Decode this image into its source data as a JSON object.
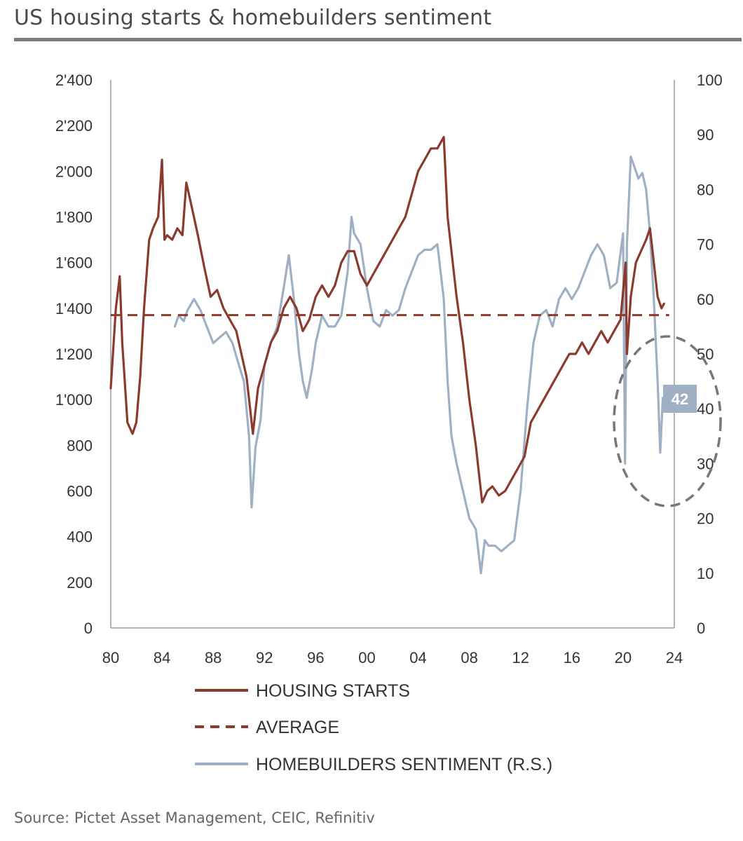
{
  "title": "US housing starts & homebuilders sentiment",
  "source": "Source: Pictet Asset Management, CEIC, Refinitiv",
  "chart_data": {
    "type": "line",
    "title": "US housing starts & homebuilders sentiment",
    "x_ticks": [
      "80",
      "84",
      "88",
      "92",
      "96",
      "00",
      "04",
      "08",
      "12",
      "16",
      "20",
      "24"
    ],
    "x_range": [
      1980,
      2024
    ],
    "y_left": {
      "range": [
        0,
        2400
      ],
      "ticks": [
        "0",
        "200",
        "400",
        "600",
        "800",
        "1'000",
        "1'200",
        "1'400",
        "1'600",
        "1'800",
        "2'000",
        "2'200",
        "2'400"
      ]
    },
    "y_right": {
      "range": [
        0,
        100
      ],
      "ticks": [
        "0",
        "10",
        "20",
        "30",
        "40",
        "50",
        "60",
        "70",
        "80",
        "90",
        "100"
      ]
    },
    "series": [
      {
        "name": "HOUSING STARTS",
        "axis": "left",
        "color": "#8b3a2e",
        "style": "solid",
        "x": [
          1980.0,
          1980.4,
          1980.7,
          1980.9,
          1981.3,
          1981.7,
          1982.0,
          1982.3,
          1982.6,
          1983.0,
          1983.3,
          1983.7,
          1984.0,
          1984.2,
          1984.4,
          1984.8,
          1985.2,
          1985.6,
          1985.9,
          1986.3,
          1986.8,
          1987.3,
          1987.8,
          1988.3,
          1988.8,
          1989.3,
          1989.8,
          1990.2,
          1990.6,
          1990.9,
          1991.1,
          1991.5,
          1992.0,
          1992.5,
          1993.0,
          1993.5,
          1994.0,
          1994.5,
          1995.0,
          1995.5,
          1996.0,
          1996.5,
          1997.0,
          1997.5,
          1998.0,
          1998.5,
          1999.0,
          1999.5,
          2000.0,
          2000.5,
          2001.0,
          2001.5,
          2002.0,
          2002.5,
          2003.0,
          2003.5,
          2004.0,
          2004.5,
          2005.0,
          2005.5,
          2006.0,
          2006.3,
          2006.7,
          2007.0,
          2007.5,
          2008.0,
          2008.5,
          2009.0,
          2009.4,
          2009.8,
          2010.3,
          2010.8,
          2011.3,
          2011.8,
          2012.3,
          2012.8,
          2013.3,
          2013.8,
          2014.3,
          2014.8,
          2015.3,
          2015.8,
          2016.3,
          2016.8,
          2017.3,
          2017.8,
          2018.3,
          2018.8,
          2019.3,
          2019.8,
          2020.2,
          2020.3,
          2020.6,
          2021.0,
          2021.4,
          2021.8,
          2022.1,
          2022.4,
          2022.7,
          2023.0,
          2023.2
        ],
        "values": [
          1050,
          1400,
          1540,
          1250,
          900,
          850,
          900,
          1100,
          1400,
          1700,
          1750,
          1800,
          2050,
          1700,
          1720,
          1700,
          1750,
          1720,
          1950,
          1850,
          1720,
          1580,
          1450,
          1480,
          1400,
          1350,
          1300,
          1200,
          1100,
          950,
          850,
          1050,
          1150,
          1250,
          1300,
          1400,
          1450,
          1400,
          1300,
          1350,
          1450,
          1500,
          1450,
          1500,
          1600,
          1650,
          1650,
          1550,
          1500,
          1550,
          1600,
          1650,
          1700,
          1750,
          1800,
          1900,
          2000,
          2050,
          2100,
          2100,
          2150,
          1800,
          1600,
          1450,
          1250,
          1000,
          800,
          550,
          600,
          620,
          580,
          600,
          650,
          700,
          750,
          900,
          950,
          1000,
          1050,
          1100,
          1150,
          1200,
          1200,
          1250,
          1200,
          1250,
          1300,
          1250,
          1300,
          1350,
          1600,
          1200,
          1450,
          1600,
          1650,
          1700,
          1750,
          1600,
          1450,
          1400,
          1420
        ]
      },
      {
        "name": "AVERAGE",
        "axis": "left",
        "color": "#8b3a2e",
        "style": "dashed",
        "x": [
          1980,
          2023.6
        ],
        "values": [
          1370,
          1370
        ]
      },
      {
        "name": "HOMEBUILDERS SENTIMENT (R.S.)",
        "axis": "right",
        "color": "#9fb0c4",
        "style": "solid",
        "x": [
          1985.0,
          1985.3,
          1985.7,
          1986.0,
          1986.5,
          1987.0,
          1987.5,
          1988.0,
          1988.5,
          1989.0,
          1989.5,
          1990.0,
          1990.4,
          1990.8,
          1991.0,
          1991.3,
          1991.7,
          1992.0,
          1992.5,
          1993.0,
          1993.5,
          1993.9,
          1994.3,
          1994.7,
          1995.0,
          1995.3,
          1995.7,
          1996.0,
          1996.5,
          1997.0,
          1997.5,
          1998.0,
          1998.5,
          1998.8,
          1999.0,
          1999.5,
          2000.0,
          2000.5,
          2001.0,
          2001.5,
          2002.0,
          2002.5,
          2003.0,
          2003.5,
          2004.0,
          2004.5,
          2005.0,
          2005.5,
          2006.0,
          2006.3,
          2006.6,
          2007.0,
          2007.5,
          2008.0,
          2008.5,
          2008.9,
          2009.2,
          2009.5,
          2010.0,
          2010.5,
          2011.0,
          2011.5,
          2012.0,
          2012.5,
          2013.0,
          2013.5,
          2014.0,
          2014.5,
          2015.0,
          2015.5,
          2016.0,
          2016.5,
          2017.0,
          2017.5,
          2018.0,
          2018.5,
          2019.0,
          2019.5,
          2020.0,
          2020.15,
          2020.3,
          2020.6,
          2020.9,
          2021.2,
          2021.5,
          2021.8,
          2022.1,
          2022.4,
          2022.7,
          2022.9,
          2023.1
        ],
        "values": [
          55,
          57,
          56,
          58,
          60,
          58,
          55,
          52,
          53,
          54,
          52,
          48,
          45,
          35,
          22,
          33,
          38,
          48,
          52,
          55,
          62,
          68,
          60,
          50,
          45,
          42,
          47,
          52,
          57,
          55,
          55,
          57,
          65,
          75,
          72,
          70,
          62,
          56,
          55,
          58,
          57,
          58,
          62,
          65,
          68,
          69,
          69,
          70,
          60,
          45,
          35,
          30,
          25,
          20,
          18,
          10,
          16,
          15,
          15,
          14,
          15,
          16,
          25,
          40,
          52,
          57,
          58,
          55,
          60,
          62,
          60,
          62,
          65,
          68,
          70,
          68,
          62,
          63,
          72,
          30,
          70,
          86,
          84,
          82,
          83,
          80,
          72,
          60,
          45,
          32,
          42
        ]
      }
    ],
    "annotations": [
      {
        "type": "badge",
        "text": "42",
        "series": "HOMEBUILDERS SENTIMENT (R.S.)",
        "color": "#9fb0c4"
      },
      {
        "type": "dashed-ellipse",
        "label": "latest sentiment collapse highlight",
        "color": "#777777"
      }
    ],
    "legend": {
      "placement": "bottom",
      "entries": [
        "HOUSING STARTS",
        "AVERAGE",
        "HOMEBUILDERS SENTIMENT (R.S.)"
      ]
    }
  }
}
